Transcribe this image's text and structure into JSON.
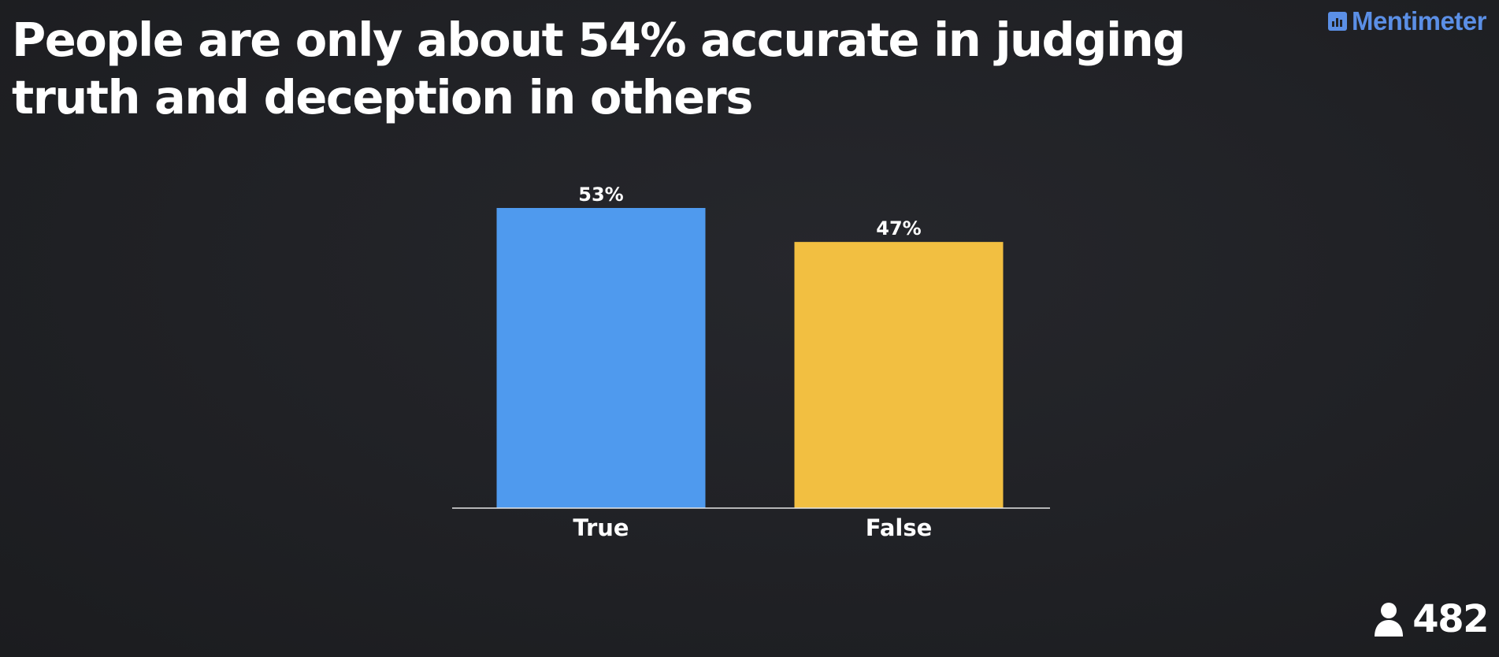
{
  "slide": {
    "title": "People are only about 54% accurate in judging truth and deception in others"
  },
  "brand": {
    "name": "Mentimeter",
    "icon": "bar-chart-logo-icon",
    "color": "#5b8fe6"
  },
  "responses": {
    "icon": "person-icon",
    "count": "482"
  },
  "chart_data": {
    "type": "bar",
    "categories": [
      "True",
      "False"
    ],
    "values": [
      53,
      47
    ],
    "value_labels": [
      "53%",
      "47%"
    ],
    "colors": [
      "#4f9aee",
      "#f2bf41"
    ],
    "ylim": [
      0,
      53
    ],
    "grid": false,
    "title": "",
    "xlabel": "",
    "ylabel": ""
  }
}
